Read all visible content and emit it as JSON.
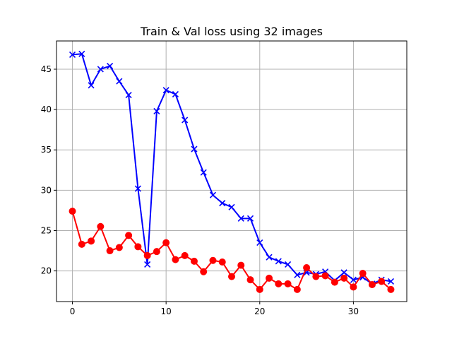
{
  "chart_data": {
    "type": "line",
    "title": "Train & Val loss using 32 images",
    "xlabel": "",
    "ylabel": "",
    "xlim": [
      -1.7,
      35.7
    ],
    "ylim": [
      16.2,
      48.5
    ],
    "x_ticks": [
      0,
      10,
      20,
      30
    ],
    "y_ticks": [
      20,
      25,
      30,
      35,
      40,
      45
    ],
    "grid": true,
    "legend": "none",
    "series": [
      {
        "color": "#0000ff",
        "marker": "x",
        "x": [
          0,
          1,
          2,
          3,
          4,
          5,
          6,
          7,
          8,
          9,
          10,
          11,
          12,
          13,
          14,
          15,
          16,
          17,
          18,
          19,
          20,
          21,
          22,
          23,
          24,
          25,
          26,
          27,
          28,
          29,
          30,
          31,
          32,
          33,
          34
        ],
        "values": [
          46.8,
          46.9,
          43.0,
          45.0,
          45.4,
          43.5,
          41.8,
          30.2,
          20.8,
          39.8,
          42.4,
          41.9,
          38.7,
          35.1,
          32.2,
          29.4,
          28.4,
          27.9,
          26.5,
          26.5,
          23.5,
          21.7,
          21.2,
          20.8,
          19.5,
          19.8,
          19.6,
          19.9,
          18.8,
          19.8,
          18.9,
          19.2,
          18.4,
          18.9,
          18.7
        ]
      },
      {
        "color": "#ff0000",
        "marker": "o",
        "x": [
          0,
          1,
          2,
          3,
          4,
          5,
          6,
          7,
          8,
          9,
          10,
          11,
          12,
          13,
          14,
          15,
          16,
          17,
          18,
          19,
          20,
          21,
          22,
          23,
          24,
          25,
          26,
          27,
          28,
          29,
          30,
          31,
          32,
          33,
          34
        ],
        "values": [
          27.4,
          23.3,
          23.7,
          25.5,
          22.5,
          22.9,
          24.4,
          23.0,
          21.9,
          22.4,
          23.5,
          21.4,
          21.9,
          21.2,
          19.9,
          21.3,
          21.1,
          19.3,
          20.7,
          18.9,
          17.7,
          19.1,
          18.4,
          18.4,
          17.7,
          20.4,
          19.3,
          19.4,
          18.6,
          19.1,
          18.0,
          19.7,
          18.3,
          18.7,
          17.7
        ]
      }
    ]
  }
}
